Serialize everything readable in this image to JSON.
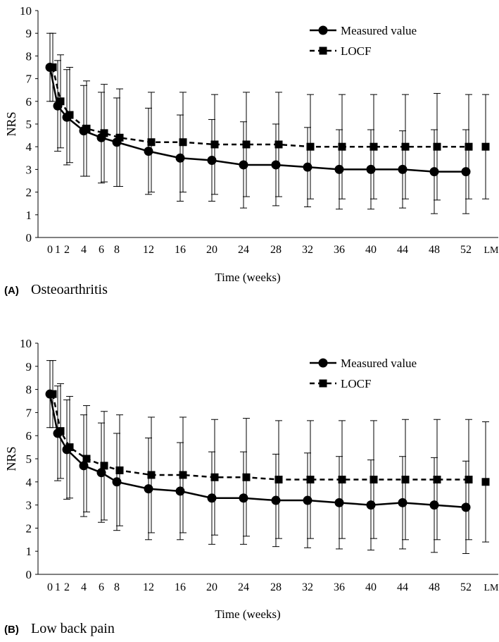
{
  "chart_data": [
    {
      "type": "line",
      "panel_letter": "(A)",
      "panel_title": "Osteoarthritis",
      "xlabel": "Time (weeks)",
      "ylabel": "NRS",
      "ylim": [
        0,
        10
      ],
      "y_ticks": [
        0,
        1,
        2,
        3,
        4,
        5,
        6,
        7,
        8,
        9,
        10
      ],
      "x_tick_labels": [
        "0",
        "1",
        "2",
        "4",
        "6",
        "8",
        "12",
        "16",
        "20",
        "24",
        "28",
        "32",
        "36",
        "40",
        "44",
        "48",
        "52",
        "LM"
      ],
      "legend_position": "top-right",
      "grid": false,
      "series": [
        {
          "name": "Measured value",
          "marker": "circle",
          "line": "solid",
          "color": "#000000",
          "x": [
            0,
            1,
            2,
            4,
            6,
            8,
            12,
            16,
            20,
            24,
            28,
            32,
            36,
            40,
            44,
            48,
            52
          ],
          "values": [
            7.5,
            5.8,
            5.3,
            4.7,
            4.4,
            4.2,
            3.8,
            3.5,
            3.4,
            3.2,
            3.2,
            3.1,
            3.0,
            3.0,
            3.0,
            2.9,
            2.9
          ],
          "error_bars": [
            1.5,
            2.0,
            2.1,
            2.0,
            2.0,
            1.95,
            1.9,
            1.9,
            1.8,
            1.9,
            1.8,
            1.75,
            1.75,
            1.75,
            1.7,
            1.85,
            1.85
          ]
        },
        {
          "name": "LOCF",
          "marker": "square",
          "line": "dashed",
          "color": "#000000",
          "x": [
            0,
            1,
            2,
            4,
            6,
            8,
            12,
            16,
            20,
            24,
            28,
            32,
            36,
            40,
            44,
            48,
            52,
            "LM"
          ],
          "values": [
            7.5,
            6.0,
            5.4,
            4.8,
            4.6,
            4.4,
            4.2,
            4.2,
            4.1,
            4.1,
            4.1,
            4.0,
            4.0,
            4.0,
            4.0,
            4.0,
            4.0,
            4.0
          ],
          "error_bars": [
            1.5,
            2.05,
            2.1,
            2.1,
            2.15,
            2.15,
            2.2,
            2.2,
            2.2,
            2.3,
            2.3,
            2.3,
            2.3,
            2.3,
            2.3,
            2.35,
            2.3,
            2.3
          ]
        }
      ]
    },
    {
      "type": "line",
      "panel_letter": "(B)",
      "panel_title": "Low back pain",
      "xlabel": "Time (weeks)",
      "ylabel": "NRS",
      "ylim": [
        0,
        10
      ],
      "y_ticks": [
        0,
        1,
        2,
        3,
        4,
        5,
        6,
        7,
        8,
        9,
        10
      ],
      "x_tick_labels": [
        "0",
        "1",
        "2",
        "4",
        "6",
        "8",
        "12",
        "16",
        "20",
        "24",
        "28",
        "32",
        "36",
        "40",
        "44",
        "48",
        "52",
        "LM"
      ],
      "legend_position": "top-right",
      "grid": false,
      "series": [
        {
          "name": "Measured value",
          "marker": "circle",
          "line": "solid",
          "color": "#000000",
          "x": [
            0,
            1,
            2,
            4,
            6,
            8,
            12,
            16,
            20,
            24,
            28,
            32,
            36,
            40,
            44,
            48,
            52
          ],
          "values": [
            7.8,
            6.1,
            5.4,
            4.7,
            4.4,
            4.0,
            3.7,
            3.6,
            3.3,
            3.3,
            3.2,
            3.2,
            3.1,
            3.0,
            3.1,
            3.0,
            2.9
          ],
          "error_bars": [
            1.45,
            2.05,
            2.15,
            2.2,
            2.15,
            2.1,
            2.2,
            2.1,
            2.0,
            2.0,
            2.0,
            2.05,
            2.0,
            1.95,
            2.0,
            2.05,
            2.0
          ]
        },
        {
          "name": "LOCF",
          "marker": "square",
          "line": "dashed",
          "color": "#000000",
          "x": [
            0,
            1,
            2,
            4,
            6,
            8,
            12,
            16,
            20,
            24,
            28,
            32,
            36,
            40,
            44,
            48,
            52,
            "LM"
          ],
          "values": [
            7.8,
            6.2,
            5.5,
            5.0,
            4.7,
            4.5,
            4.3,
            4.3,
            4.2,
            4.2,
            4.1,
            4.1,
            4.1,
            4.1,
            4.1,
            4.1,
            4.1,
            4.0
          ],
          "error_bars": [
            1.45,
            2.05,
            2.2,
            2.3,
            2.35,
            2.4,
            2.5,
            2.5,
            2.5,
            2.55,
            2.55,
            2.55,
            2.55,
            2.55,
            2.6,
            2.6,
            2.6,
            2.6
          ]
        }
      ]
    }
  ]
}
